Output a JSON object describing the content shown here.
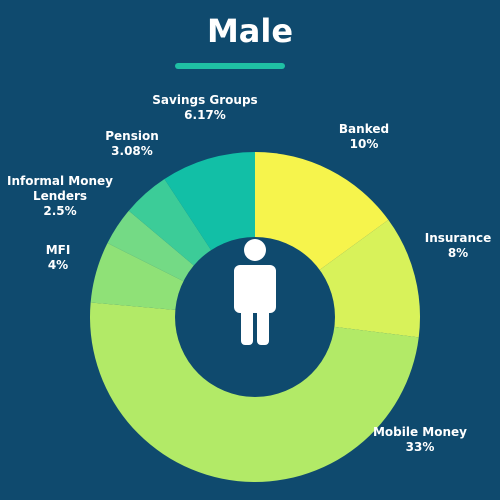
{
  "chart_data": {
    "type": "donut",
    "title": "Male",
    "categories": [
      "Banked",
      "Insurance",
      "Mobile Money",
      "MFI",
      "Informal Money Lenders",
      "Pension",
      "Savings Groups"
    ],
    "values": [
      10,
      8,
      33,
      4,
      2.5,
      3.08,
      6.17
    ],
    "value_labels": [
      "10%",
      "8%",
      "33%",
      "4%",
      "2.5%",
      "3.08%",
      "6.17%"
    ],
    "colors": [
      "#f6f44c",
      "#d8f25a",
      "#b2ea67",
      "#8fe177",
      "#74da85",
      "#3ccc98",
      "#12bfa6"
    ]
  }
}
